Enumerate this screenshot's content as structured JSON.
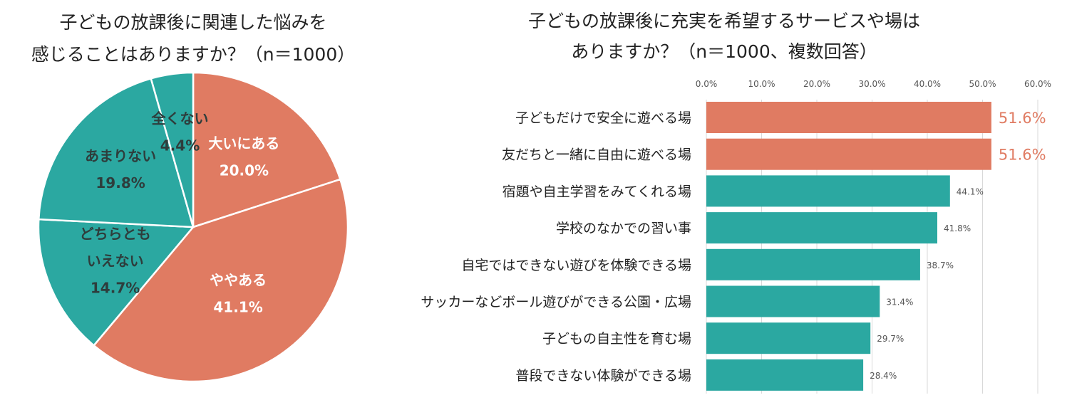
{
  "colors": {
    "accent": "#E07B62",
    "teal": "#2BA8A1",
    "text": "#222222",
    "grid": "#d9d9d9",
    "tick": "#555555"
  },
  "chart_data": [
    {
      "type": "pie",
      "title_lines": [
        "子どもの放課後に関連した悩みを",
        "感じることはありますか？（n＝1000）"
      ],
      "slices": [
        {
          "label": "大いにある",
          "value": 20.0,
          "value_text": "20.0%",
          "color": "#E07B62"
        },
        {
          "label": "ややある",
          "value": 41.1,
          "value_text": "41.1%",
          "color": "#E07B62"
        },
        {
          "label": "どちらとも\nいえない",
          "value": 14.7,
          "value_text": "14.7%",
          "color": "#2BA8A1"
        },
        {
          "label": "あまりない",
          "value": 19.8,
          "value_text": "19.8%",
          "color": "#2BA8A1"
        },
        {
          "label": "全くない",
          "value": 4.4,
          "value_text": "4.4%",
          "color": "#2BA8A1"
        }
      ],
      "start_angle": "12 o'clock, clockwise"
    },
    {
      "type": "bar",
      "orientation": "horizontal",
      "title_lines": [
        "子どもの放課後に充実を希望するサービスや場は",
        "ありますか？（n＝1000、複数回答）"
      ],
      "categories": [
        "子どもだけで安全に遊べる場",
        "友だちと一緒に自由に遊べる場",
        "宿題や自主学習をみてくれる場",
        "学校のなかでの習い事",
        "自宅ではできない遊びを体験できる場",
        "サッカーなどボール遊びができる公園・広場",
        "子どもの自主性を育む場",
        "普段できない体験ができる場"
      ],
      "values": [
        51.6,
        51.6,
        44.1,
        41.8,
        38.7,
        31.4,
        29.7,
        28.4
      ],
      "value_labels": [
        "51.6%",
        "51.6%",
        "44.1%",
        "41.8%",
        "38.7%",
        "31.4%",
        "29.7%",
        "28.4%"
      ],
      "highlight": [
        true,
        true,
        false,
        false,
        false,
        false,
        false,
        false
      ],
      "xlim": [
        0,
        60
      ],
      "ticks": [
        "0.0%",
        "10.0%",
        "20.0%",
        "30.0%",
        "40.0%",
        "50.0%",
        "60.0%"
      ],
      "tick_values": [
        0,
        10,
        20,
        30,
        40,
        50,
        60
      ],
      "grid": true,
      "axis_position": "top"
    }
  ]
}
